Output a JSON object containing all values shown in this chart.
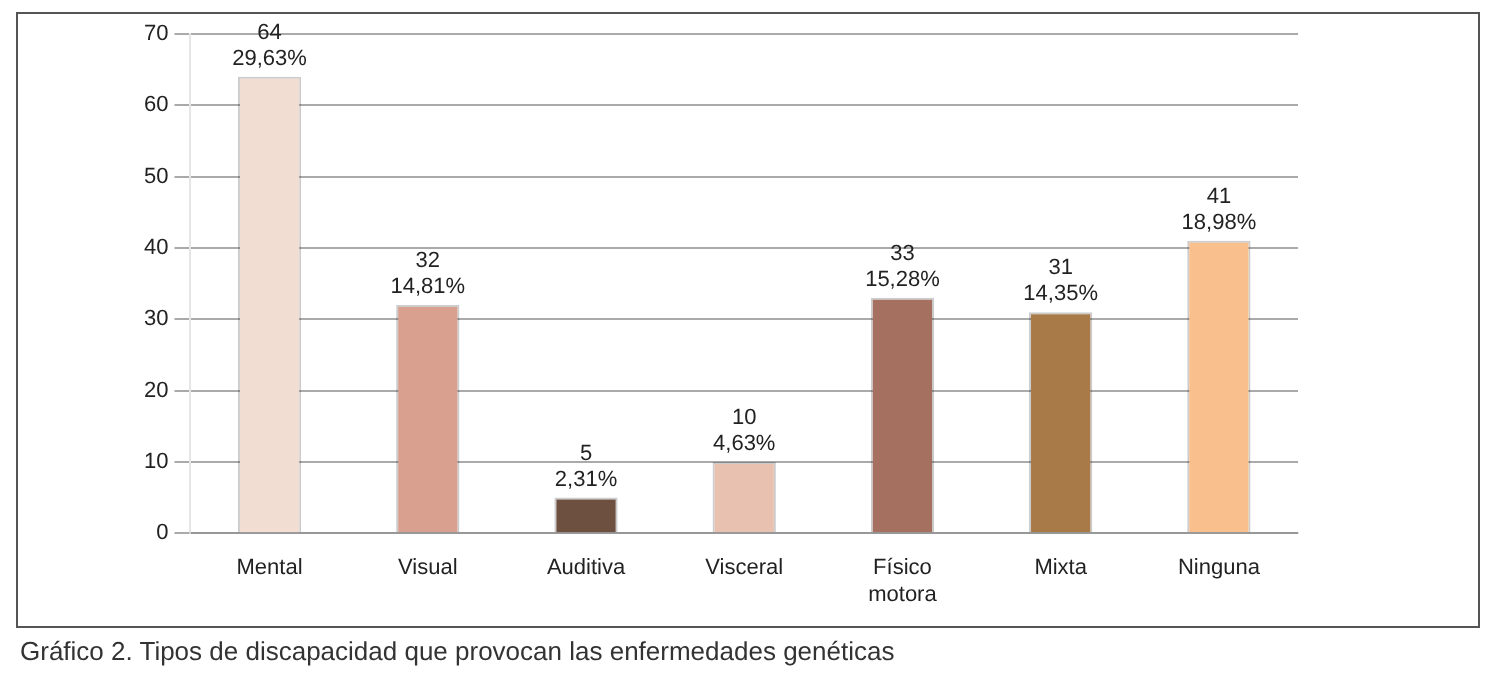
{
  "chart_data": {
    "type": "bar",
    "categories": [
      "Mental",
      "Visual",
      "Auditiva",
      "Visceral",
      "Físico motora",
      "Mixta",
      "Ninguna"
    ],
    "values": [
      64,
      32,
      5,
      10,
      33,
      31,
      41
    ],
    "colors": [
      "#f2ddd3",
      "#d9a08f",
      "#6e5040",
      "#e8c1b0",
      "#a57060",
      "#a87a48",
      "#f9c08e"
    ],
    "value_labels": [
      "64\n29,63%",
      "32\n14,81%",
      "5\n2,31%",
      "10\n4,63%",
      "33\n15,28%",
      "31\n14,35%",
      "41\n18,98%"
    ],
    "ylim": [
      0,
      70
    ],
    "yticks": [
      0,
      10,
      20,
      30,
      40,
      50,
      60,
      70
    ],
    "grid": "y",
    "legend": false,
    "annotations": [
      "Gráfico 2. Tipos de discapacidad que provocan las enfermedades genéticas"
    ]
  }
}
